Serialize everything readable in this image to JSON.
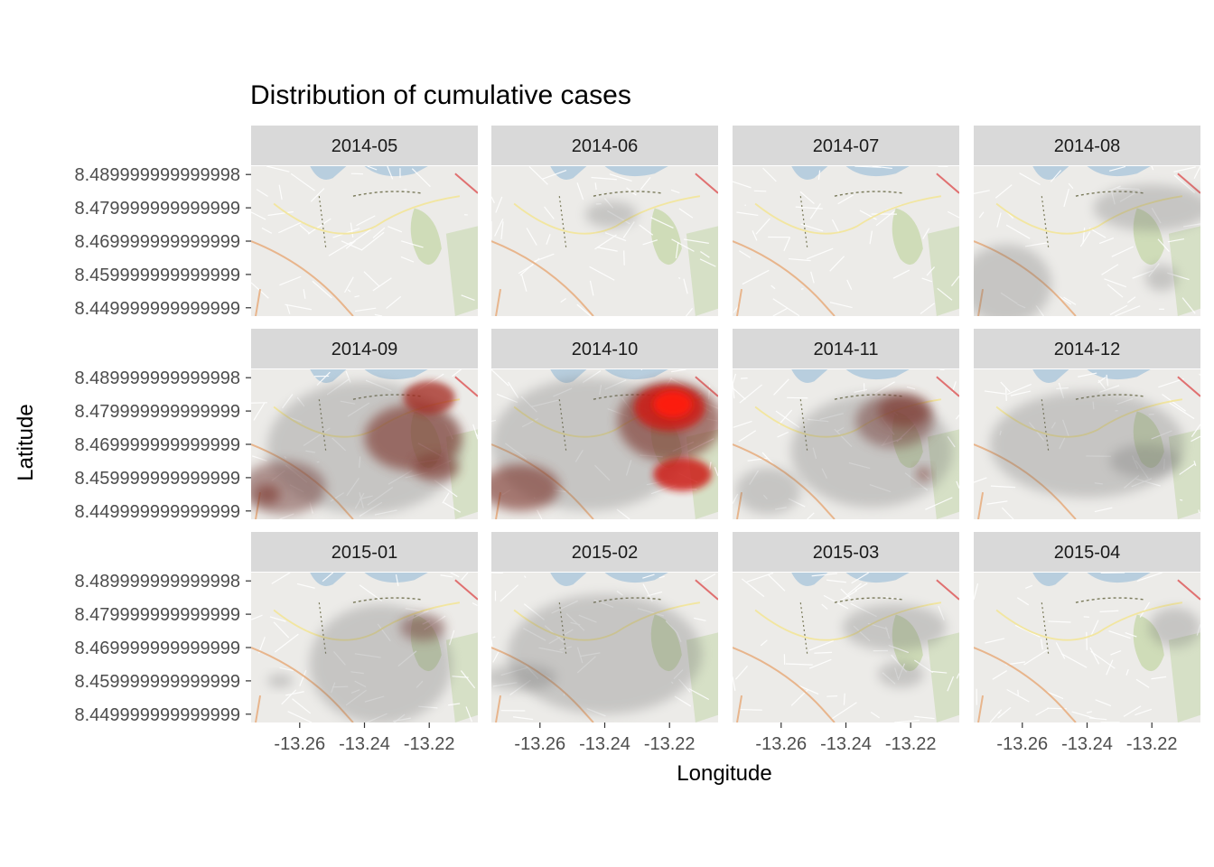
{
  "chart_data": {
    "type": "heatmap",
    "subtype": "faceted density map over street-map tiles",
    "title": "Distribution of cumulative cases",
    "xlabel": "Longitude",
    "ylabel": "Latitude",
    "xlim": [
      -13.275,
      -13.205
    ],
    "ylim": [
      8.4475,
      8.4925
    ],
    "x_ticks": [
      -13.26,
      -13.24,
      -13.22
    ],
    "x_tick_labels": [
      "-13.26",
      "-13.24",
      "-13.22"
    ],
    "y_ticks": [
      8.45,
      8.459999999999999,
      8.469999999999999,
      8.479999999999999,
      8.489999999999998
    ],
    "y_tick_labels": [
      "8.449999999999999",
      "8.459999999999999",
      "8.469999999999999",
      "8.479999999999999",
      "8.489999999999998"
    ],
    "facet_layout": {
      "rows": 3,
      "cols": 4
    },
    "fill_scale": {
      "low": "#808080",
      "high": "#ff0000"
    },
    "panels": [
      {
        "label": "2014-05",
        "hotspots": []
      },
      {
        "label": "2014-06",
        "hotspots": [
          {
            "x": -13.238,
            "y": 8.478,
            "rx": 0.008,
            "ry": 0.004,
            "level": 1
          }
        ]
      },
      {
        "label": "2014-07",
        "hotspots": []
      },
      {
        "label": "2014-08",
        "hotspots": [
          {
            "x": -13.22,
            "y": 8.48,
            "rx": 0.018,
            "ry": 0.007,
            "level": 1
          },
          {
            "x": -13.265,
            "y": 8.457,
            "rx": 0.014,
            "ry": 0.012,
            "level": 1
          },
          {
            "x": -13.217,
            "y": 8.459,
            "rx": 0.005,
            "ry": 0.004,
            "level": 1
          }
        ]
      },
      {
        "label": "2014-09",
        "hotspots": [
          {
            "x": -13.24,
            "y": 8.469,
            "rx": 0.03,
            "ry": 0.02,
            "level": 1
          },
          {
            "x": -13.265,
            "y": 8.457,
            "rx": 0.013,
            "ry": 0.008,
            "level": 2
          },
          {
            "x": -13.225,
            "y": 8.472,
            "rx": 0.015,
            "ry": 0.01,
            "level": 3
          },
          {
            "x": -13.22,
            "y": 8.484,
            "rx": 0.008,
            "ry": 0.005,
            "level": 4
          },
          {
            "x": -13.218,
            "y": 8.463,
            "rx": 0.007,
            "ry": 0.004,
            "level": 3
          },
          {
            "x": -13.27,
            "y": 8.455,
            "rx": 0.004,
            "ry": 0.003,
            "level": 3
          }
        ]
      },
      {
        "label": "2014-10",
        "hotspots": [
          {
            "x": -13.245,
            "y": 8.47,
            "rx": 0.03,
            "ry": 0.02,
            "level": 1
          },
          {
            "x": -13.22,
            "y": 8.477,
            "rx": 0.016,
            "ry": 0.012,
            "level": 3
          },
          {
            "x": -13.22,
            "y": 8.481,
            "rx": 0.011,
            "ry": 0.007,
            "level": 5
          },
          {
            "x": -13.219,
            "y": 8.482,
            "rx": 0.006,
            "ry": 0.004,
            "level": 6
          },
          {
            "x": -13.216,
            "y": 8.461,
            "rx": 0.009,
            "ry": 0.005,
            "level": 5
          },
          {
            "x": -13.266,
            "y": 8.457,
            "rx": 0.012,
            "ry": 0.007,
            "level": 3
          }
        ]
      },
      {
        "label": "2014-11",
        "hotspots": [
          {
            "x": -13.232,
            "y": 8.468,
            "rx": 0.025,
            "ry": 0.017,
            "level": 1
          },
          {
            "x": -13.225,
            "y": 8.477,
            "rx": 0.012,
            "ry": 0.008,
            "level": 2
          },
          {
            "x": -13.222,
            "y": 8.48,
            "rx": 0.008,
            "ry": 0.005,
            "level": 3
          },
          {
            "x": -13.264,
            "y": 8.456,
            "rx": 0.01,
            "ry": 0.007,
            "level": 1
          },
          {
            "x": -13.216,
            "y": 8.461,
            "rx": 0.002,
            "ry": 0.002,
            "level": 3
          }
        ]
      },
      {
        "label": "2014-12",
        "hotspots": [
          {
            "x": -13.24,
            "y": 8.47,
            "rx": 0.03,
            "ry": 0.016,
            "level": 1
          },
          {
            "x": -13.222,
            "y": 8.465,
            "rx": 0.011,
            "ry": 0.005,
            "level": 1
          }
        ]
      },
      {
        "label": "2015-01",
        "hotspots": [
          {
            "x": -13.235,
            "y": 8.465,
            "rx": 0.022,
            "ry": 0.018,
            "level": 1
          },
          {
            "x": -13.222,
            "y": 8.476,
            "rx": 0.007,
            "ry": 0.004,
            "level": 2
          },
          {
            "x": -13.266,
            "y": 8.46,
            "rx": 0.004,
            "ry": 0.002,
            "level": 1
          }
        ]
      },
      {
        "label": "2015-02",
        "hotspots": [
          {
            "x": -13.24,
            "y": 8.468,
            "rx": 0.03,
            "ry": 0.018,
            "level": 1
          },
          {
            "x": -13.266,
            "y": 8.461,
            "rx": 0.011,
            "ry": 0.004,
            "level": 1
          }
        ]
      },
      {
        "label": "2015-03",
        "hotspots": [
          {
            "x": -13.225,
            "y": 8.476,
            "rx": 0.016,
            "ry": 0.007,
            "level": 1
          },
          {
            "x": -13.223,
            "y": 8.462,
            "rx": 0.007,
            "ry": 0.004,
            "level": 1
          }
        ]
      },
      {
        "label": "2015-04",
        "hotspots": [
          {
            "x": -13.213,
            "y": 8.476,
            "rx": 0.008,
            "ry": 0.006,
            "level": 1
          }
        ]
      }
    ]
  }
}
